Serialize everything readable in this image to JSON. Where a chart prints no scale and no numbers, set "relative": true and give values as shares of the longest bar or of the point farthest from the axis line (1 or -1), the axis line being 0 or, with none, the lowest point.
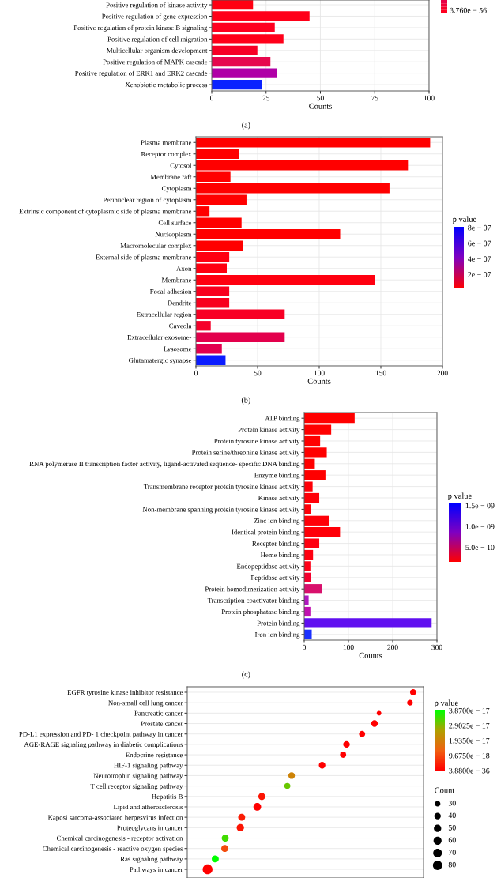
{
  "chart_data": [
    {
      "type": "bar",
      "orientation": "horizontal",
      "xlabel": "Counts",
      "annotations": [
        "(a)",
        "3.760e − 56"
      ],
      "categories": [
        "Positive regulation of kinase activity",
        "Positive regulation of gene expression",
        "Positive regulation of protein kinase B signaling",
        "Positive regulation of cell migration",
        "Multicellular organism development",
        "Positive regulation of MAPK cascade",
        "Positive regulation of ERK1 and ERK2 cascade",
        "Xenobiotic metabolic process"
      ],
      "values": [
        19,
        45,
        29,
        33,
        21,
        27,
        30,
        23
      ],
      "colors": [
        "#ff0012",
        "#ff0018",
        "#ff0020",
        "#ff001a",
        "#f70026",
        "#e6084e",
        "#b000a6",
        "#0a22ff"
      ],
      "xlim": [
        0,
        100
      ],
      "xticks": [
        0,
        25,
        50,
        75,
        100
      ],
      "grid": true
    },
    {
      "type": "bar",
      "orientation": "horizontal",
      "xlabel": "Counts",
      "annotations": [
        "(b)"
      ],
      "clabel": "p value",
      "categories": [
        "Plasma membrane",
        "Receptor complex",
        "Cytosol",
        "Membrane raft",
        "Cytoplasm",
        "Perinuclear region of cytoplasm",
        "Extrinsic component of cytoplasmic side of plasma membrane",
        "Cell surface",
        "Nucleoplasm",
        "Macromolecular complex",
        "External side of plasma membrane",
        "Axon",
        "Membrane",
        "Focal adhesion",
        "Dendrite",
        "Extracellular region",
        "Caveola",
        "Extracellular exosome-",
        "Lysosome",
        "Glutamatergic synapse"
      ],
      "values": [
        190,
        35,
        172,
        28,
        157,
        41,
        11,
        37,
        117,
        38,
        27,
        25,
        145,
        27,
        27,
        72,
        12,
        72,
        21,
        24
      ],
      "colors": [
        "#ff0000",
        "#ff0000",
        "#ff0000",
        "#ff0000",
        "#ff0000",
        "#ff0000",
        "#ff0000",
        "#ff0000",
        "#ff0000",
        "#ff0000",
        "#ff0010",
        "#ff0010",
        "#ff0010",
        "#f8001e",
        "#f8001e",
        "#f80024",
        "#f5002a",
        "#e3004c",
        "#e2004f",
        "#0a1cff"
      ],
      "xlim": [
        0,
        200
      ],
      "xticks": [
        0,
        50,
        100,
        150,
        200
      ],
      "grid": true,
      "clim": [
        2e-08,
        8.1e-07
      ],
      "cticks": [
        {
          "value": 2e-07,
          "label": "2e − 07"
        },
        {
          "value": 4e-07,
          "label": "4e − 07"
        },
        {
          "value": 6e-07,
          "label": "6e − 07"
        },
        {
          "value": 8e-07,
          "label": "8e − 07"
        }
      ]
    },
    {
      "type": "bar",
      "orientation": "horizontal",
      "xlabel": "Counts",
      "annotations": [
        "(c)"
      ],
      "clabel": "p value",
      "categories": [
        "ATP binding",
        "Protein kinase activity",
        "Protein tyrosine kinase activity",
        "Protein serine/threonine kinase activity",
        "RNA polymerase II transcription factor activity, ligand-activated sequence- specific DNA binding",
        "Enzyme binding",
        "Transmembrane receptor protein tyrosine kinase activity",
        "Kinase activity",
        "Non-membrane spanning protein tyrosine kinase activity",
        "Zinc ion binding",
        "Identical protein binding",
        "Receptor binding",
        "Heme binding",
        "Endopeptidase activity",
        "Peptidase activity",
        "Protein homodimerization activity",
        "Transcription coactivator binding",
        "Protein phosphatase binding",
        "Protein binding",
        "Iron ion binding"
      ],
      "values": [
        114,
        61,
        36,
        51,
        24,
        48,
        19,
        34,
        16,
        56,
        81,
        34,
        20,
        14,
        15,
        41,
        10,
        14,
        288,
        17
      ],
      "colors": [
        "#ff0000",
        "#ff0000",
        "#ff0000",
        "#ff0000",
        "#ff0000",
        "#ff0000",
        "#ff0008",
        "#ff0008",
        "#ff0008",
        "#ff0008",
        "#ff0008",
        "#ff0010",
        "#ff0010",
        "#ff0018",
        "#f4002e",
        "#d8106c",
        "#b018c0",
        "#c010b0",
        "#6010f0",
        "#1a30ff"
      ],
      "xlim": [
        0,
        300
      ],
      "xticks": [
        0,
        100,
        200,
        300
      ],
      "grid": true,
      "clim": [
        1.5e-10,
        1.55e-09
      ],
      "cticks": [
        {
          "value": 5e-10,
          "label": "5.0e − 10"
        },
        {
          "value": 1e-09,
          "label": "1.0e − 09"
        },
        {
          "value": 1.5e-09,
          "label": "1.5e − 09"
        }
      ]
    },
    {
      "type": "bubble",
      "orientation": "horizontal",
      "relative": true,
      "clabel": "p value",
      "legend_title": "Count",
      "tick_labels": "y",
      "grid": "y",
      "categories": [
        "EGFR tyrosine kinase inhibitor resistance",
        "Non-small cell lung cancer",
        "Pancreatic cancer",
        "Prostate cancer",
        "PD-L1 expression and PD- 1 checkpoint pathway in cancer",
        "AGE-RAGE signaling pathway in diabetic complications",
        "Endocrine resistance",
        "HIF-1 signaling pathway",
        "Neurotrophin signaling pathway",
        "T cell receptor signaling pathway",
        "Hepatitis B",
        "Lipid and atherosclerosis",
        "Kaposi sarcoma-associated herpesvirus infection",
        "Proteoglycans in cancer",
        "Chemical carcinogenesis - receptor activation",
        "Chemical carcinogenesis - reactive oxygen species",
        "Ras signaling pathway",
        "Pathways in cancer"
      ],
      "values": [
        1,
        0.986,
        0.849,
        0.829,
        0.774,
        0.705,
        0.69,
        0.597,
        0.462,
        0.443,
        0.33,
        0.31,
        0.241,
        0.235,
        0.168,
        0.166,
        0.124,
        0.09
      ],
      "sizes": [
        35,
        30,
        20,
        40,
        35,
        40,
        35,
        40,
        40,
        35,
        45,
        55,
        45,
        50,
        45,
        45,
        45,
        90
      ],
      "cvalues": [
        3.88e-36,
        3.88e-36,
        3.88e-36,
        3.88e-36,
        3.88e-36,
        3.88e-36,
        3.88e-36,
        3.88e-36,
        2e-17,
        3.1e-17,
        3e-18,
        3.88e-36,
        4e-18,
        3e-18,
        3.4e-17,
        1e-17,
        3.87e-17,
        3.88e-36
      ],
      "size_legend": [
        30,
        40,
        50,
        60,
        70,
        80
      ],
      "clim": [
        3.88e-36,
        3.87e-17
      ],
      "cticks": [
        {
          "value": 3.88e-36,
          "label": "3.8800e − 36"
        },
        {
          "value": 9.675e-18,
          "label": "9.6750e − 18"
        },
        {
          "value": 1.935e-17,
          "label": "1.9350e − 17"
        },
        {
          "value": 2.9025e-17,
          "label": "2.9025e − 17"
        },
        {
          "value": 3.87e-17,
          "label": "3.8700e − 17"
        }
      ]
    }
  ]
}
